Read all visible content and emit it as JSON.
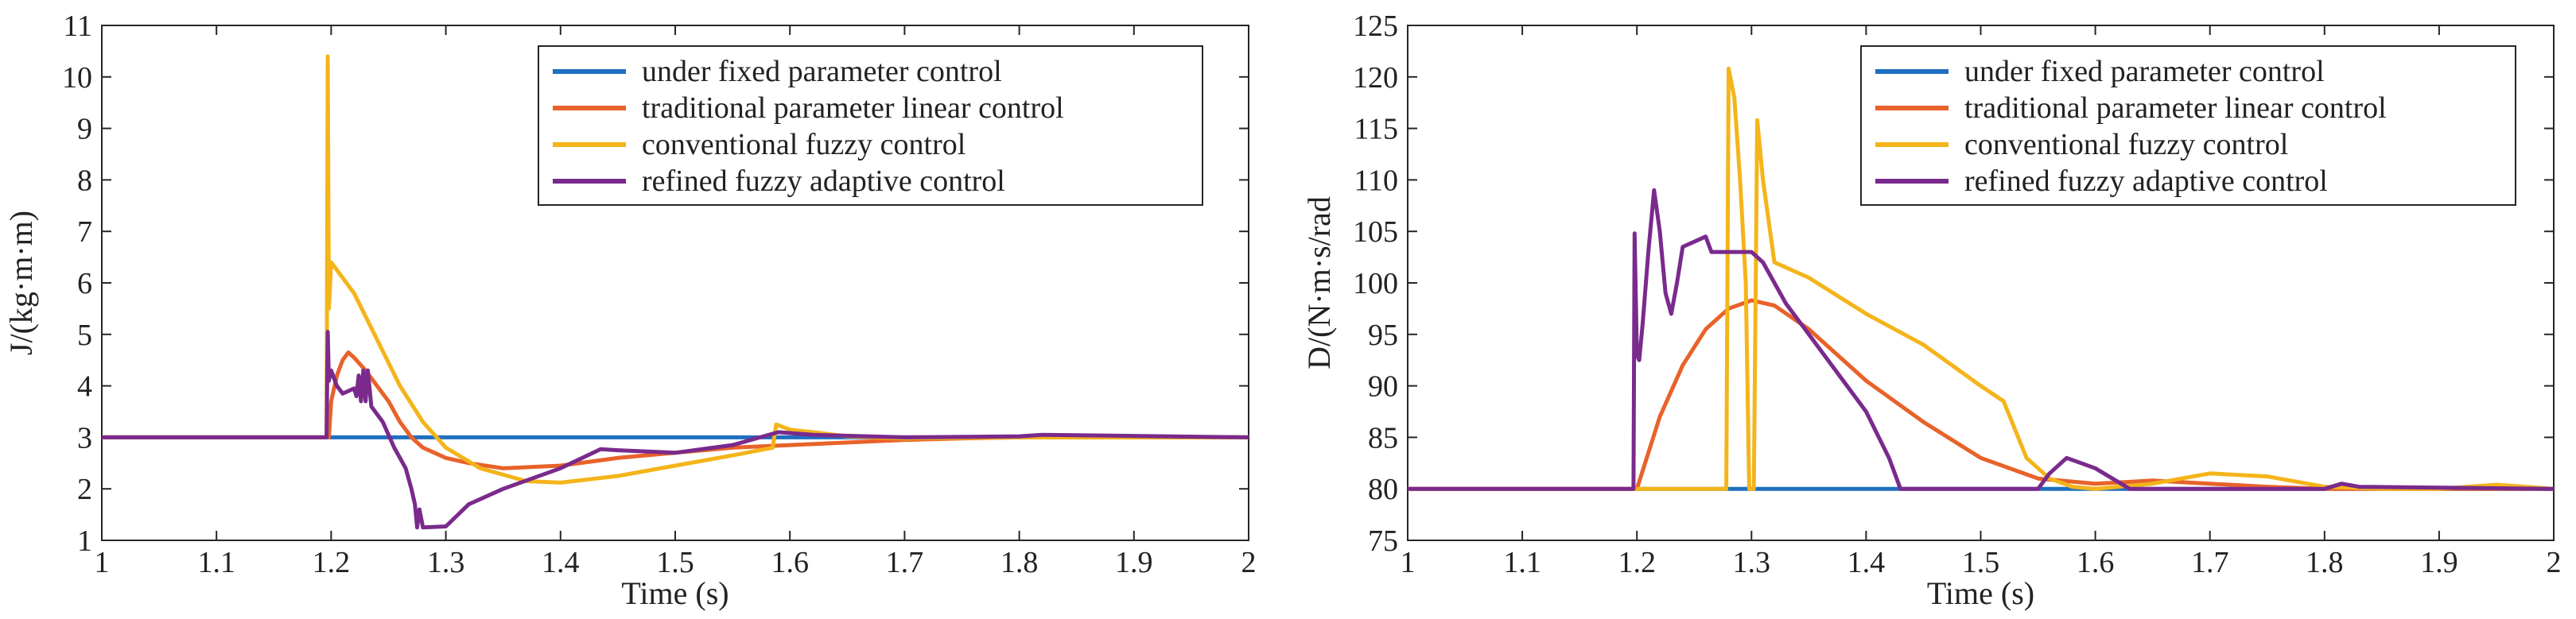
{
  "chart_data": [
    {
      "type": "line",
      "xlabel": "Time (s)",
      "ylabel": "J/(kg·m·m)",
      "xlim": [
        1,
        2
      ],
      "ylim": [
        1,
        11
      ],
      "xticks": [
        1,
        1.1,
        1.2,
        1.3,
        1.4,
        1.5,
        1.6,
        1.7,
        1.8,
        1.9,
        2
      ],
      "xtick_labels": [
        "1",
        "1.1",
        "1.2",
        "1.3",
        "1.4",
        "1.5",
        "1.6",
        "1.7",
        "1.8",
        "1.9",
        "2"
      ],
      "yticks": [
        1,
        2,
        3,
        4,
        5,
        6,
        7,
        8,
        9,
        10,
        11
      ],
      "ytick_labels": [
        "1",
        "2",
        "3",
        "4",
        "5",
        "6",
        "7",
        "8",
        "9",
        "10",
        "11"
      ],
      "legend_position": "top-right",
      "grid": false,
      "series": [
        {
          "name": "under fixed parameter control",
          "color": "#1f6fc0",
          "points": [
            [
              1,
              3
            ],
            [
              2,
              3
            ]
          ]
        },
        {
          "name": "traditional parameter linear control",
          "color": "#e8622a",
          "points": [
            [
              1,
              3
            ],
            [
              1.198,
              3
            ],
            [
              1.2,
              3.7
            ],
            [
              1.205,
              4.2
            ],
            [
              1.21,
              4.5
            ],
            [
              1.215,
              4.65
            ],
            [
              1.22,
              4.55
            ],
            [
              1.23,
              4.3
            ],
            [
              1.24,
              4.0
            ],
            [
              1.25,
              3.7
            ],
            [
              1.26,
              3.3
            ],
            [
              1.27,
              3.0
            ],
            [
              1.28,
              2.8
            ],
            [
              1.29,
              2.7
            ],
            [
              1.3,
              2.6
            ],
            [
              1.32,
              2.5
            ],
            [
              1.35,
              2.4
            ],
            [
              1.4,
              2.45
            ],
            [
              1.45,
              2.6
            ],
            [
              1.5,
              2.7
            ],
            [
              1.55,
              2.8
            ],
            [
              1.6,
              2.85
            ],
            [
              1.65,
              2.9
            ],
            [
              1.7,
              2.95
            ],
            [
              1.75,
              2.98
            ],
            [
              1.8,
              3.0
            ],
            [
              1.85,
              3.0
            ],
            [
              1.9,
              3.0
            ],
            [
              2,
              3.0
            ]
          ]
        },
        {
          "name": "conventional fuzzy control",
          "color": "#f4b41a",
          "points": [
            [
              1,
              3
            ],
            [
              1.196,
              3
            ],
            [
              1.197,
              10.4
            ],
            [
              1.198,
              5.5
            ],
            [
              1.2,
              6.4
            ],
            [
              1.22,
              5.8
            ],
            [
              1.24,
              4.9
            ],
            [
              1.26,
              4.0
            ],
            [
              1.28,
              3.3
            ],
            [
              1.3,
              2.8
            ],
            [
              1.33,
              2.4
            ],
            [
              1.37,
              2.15
            ],
            [
              1.4,
              2.12
            ],
            [
              1.45,
              2.25
            ],
            [
              1.5,
              2.45
            ],
            [
              1.55,
              2.65
            ],
            [
              1.585,
              2.8
            ],
            [
              1.588,
              3.25
            ],
            [
              1.6,
              3.15
            ],
            [
              1.62,
              3.1
            ],
            [
              1.65,
              3.02
            ],
            [
              1.7,
              2.98
            ],
            [
              1.8,
              3.0
            ],
            [
              2,
              3.0
            ]
          ]
        },
        {
          "name": "refined fuzzy adaptive control",
          "color": "#7a2a8c",
          "points": [
            [
              1,
              3
            ],
            [
              1.196,
              3
            ],
            [
              1.197,
              5.05
            ],
            [
              1.198,
              4.1
            ],
            [
              1.2,
              4.3
            ],
            [
              1.205,
              4.0
            ],
            [
              1.21,
              3.85
            ],
            [
              1.215,
              3.9
            ],
            [
              1.22,
              3.95
            ],
            [
              1.222,
              3.8
            ],
            [
              1.224,
              4.2
            ],
            [
              1.226,
              3.7
            ],
            [
              1.228,
              4.3
            ],
            [
              1.23,
              3.7
            ],
            [
              1.232,
              4.3
            ],
            [
              1.235,
              3.6
            ],
            [
              1.245,
              3.3
            ],
            [
              1.255,
              2.8
            ],
            [
              1.265,
              2.4
            ],
            [
              1.27,
              2.0
            ],
            [
              1.273,
              1.7
            ],
            [
              1.275,
              1.25
            ],
            [
              1.277,
              1.6
            ],
            [
              1.28,
              1.25
            ],
            [
              1.3,
              1.27
            ],
            [
              1.32,
              1.7
            ],
            [
              1.35,
              2.0
            ],
            [
              1.4,
              2.4
            ],
            [
              1.435,
              2.77
            ],
            [
              1.45,
              2.75
            ],
            [
              1.5,
              2.7
            ],
            [
              1.55,
              2.85
            ],
            [
              1.59,
              3.1
            ],
            [
              1.62,
              3.05
            ],
            [
              1.7,
              3.0
            ],
            [
              1.8,
              3.02
            ],
            [
              1.82,
              3.05
            ],
            [
              2,
              3.0
            ]
          ]
        }
      ]
    },
    {
      "type": "line",
      "xlabel": "Time (s)",
      "ylabel": "D/(N·m·s/rad",
      "xlim": [
        1,
        2
      ],
      "ylim": [
        75,
        125
      ],
      "xticks": [
        1,
        1.1,
        1.2,
        1.3,
        1.4,
        1.5,
        1.6,
        1.7,
        1.8,
        1.9,
        2
      ],
      "xtick_labels": [
        "1",
        "1.1",
        "1.2",
        "1.3",
        "1.4",
        "1.5",
        "1.6",
        "1.7",
        "1.8",
        "1.9",
        "2"
      ],
      "yticks": [
        75,
        80,
        85,
        90,
        95,
        100,
        105,
        110,
        115,
        120,
        125
      ],
      "ytick_labels": [
        "75",
        "80",
        "85",
        "90",
        "95",
        "100",
        "105",
        "110",
        "115",
        "120",
        "125"
      ],
      "legend_position": "top-right",
      "grid": false,
      "series": [
        {
          "name": "under fixed parameter control",
          "color": "#1f6fc0",
          "points": [
            [
              1,
              80
            ],
            [
              2,
              80
            ]
          ]
        },
        {
          "name": "traditional parameter linear control",
          "color": "#e8622a",
          "points": [
            [
              1,
              80
            ],
            [
              1.2,
              80
            ],
            [
              1.22,
              87
            ],
            [
              1.24,
              92
            ],
            [
              1.26,
              95.5
            ],
            [
              1.28,
              97.5
            ],
            [
              1.3,
              98.3
            ],
            [
              1.32,
              97.8
            ],
            [
              1.35,
              95.5
            ],
            [
              1.4,
              90.5
            ],
            [
              1.45,
              86.5
            ],
            [
              1.5,
              83
            ],
            [
              1.55,
              81
            ],
            [
              1.6,
              80.5
            ],
            [
              1.65,
              80.8
            ],
            [
              1.7,
              80.5
            ],
            [
              1.75,
              80.2
            ],
            [
              1.8,
              80
            ],
            [
              1.9,
              80
            ],
            [
              2,
              80
            ]
          ]
        },
        {
          "name": "conventional fuzzy control",
          "color": "#f4b41a",
          "points": [
            [
              1,
              80
            ],
            [
              1.278,
              80
            ],
            [
              1.28,
              120.8
            ],
            [
              1.285,
              118
            ],
            [
              1.29,
              110
            ],
            [
              1.295,
              100
            ],
            [
              1.298,
              80
            ],
            [
              1.302,
              80
            ],
            [
              1.305,
              115.8
            ],
            [
              1.31,
              110
            ],
            [
              1.32,
              102
            ],
            [
              1.35,
              100.5
            ],
            [
              1.4,
              97
            ],
            [
              1.45,
              94
            ],
            [
              1.5,
              90
            ],
            [
              1.52,
              88.5
            ],
            [
              1.54,
              83
            ],
            [
              1.56,
              81
            ],
            [
              1.58,
              80.2
            ],
            [
              1.6,
              80
            ],
            [
              1.65,
              80.5
            ],
            [
              1.7,
              81.5
            ],
            [
              1.75,
              81.2
            ],
            [
              1.8,
              80.2
            ],
            [
              1.85,
              80
            ],
            [
              1.9,
              80
            ],
            [
              1.95,
              80.4
            ],
            [
              2,
              80
            ]
          ]
        },
        {
          "name": "refined fuzzy adaptive control",
          "color": "#7a2a8c",
          "points": [
            [
              1,
              80
            ],
            [
              1.197,
              80
            ],
            [
              1.198,
              104.8
            ],
            [
              1.2,
              93
            ],
            [
              1.202,
              92.5
            ],
            [
              1.205,
              96
            ],
            [
              1.21,
              103
            ],
            [
              1.215,
              109
            ],
            [
              1.22,
              105
            ],
            [
              1.225,
              99
            ],
            [
              1.23,
              97
            ],
            [
              1.235,
              100
            ],
            [
              1.24,
              103.5
            ],
            [
              1.25,
              104
            ],
            [
              1.26,
              104.5
            ],
            [
              1.265,
              103
            ],
            [
              1.27,
              103
            ],
            [
              1.3,
              103
            ],
            [
              1.31,
              102
            ],
            [
              1.33,
              98
            ],
            [
              1.35,
              95
            ],
            [
              1.38,
              90.5
            ],
            [
              1.4,
              87.5
            ],
            [
              1.42,
              83
            ],
            [
              1.43,
              80
            ],
            [
              1.55,
              80
            ],
            [
              1.56,
              81.5
            ],
            [
              1.575,
              83
            ],
            [
              1.6,
              82
            ],
            [
              1.63,
              80
            ],
            [
              1.8,
              80
            ],
            [
              1.815,
              80.5
            ],
            [
              1.83,
              80.2
            ],
            [
              2,
              80
            ]
          ]
        }
      ]
    }
  ]
}
